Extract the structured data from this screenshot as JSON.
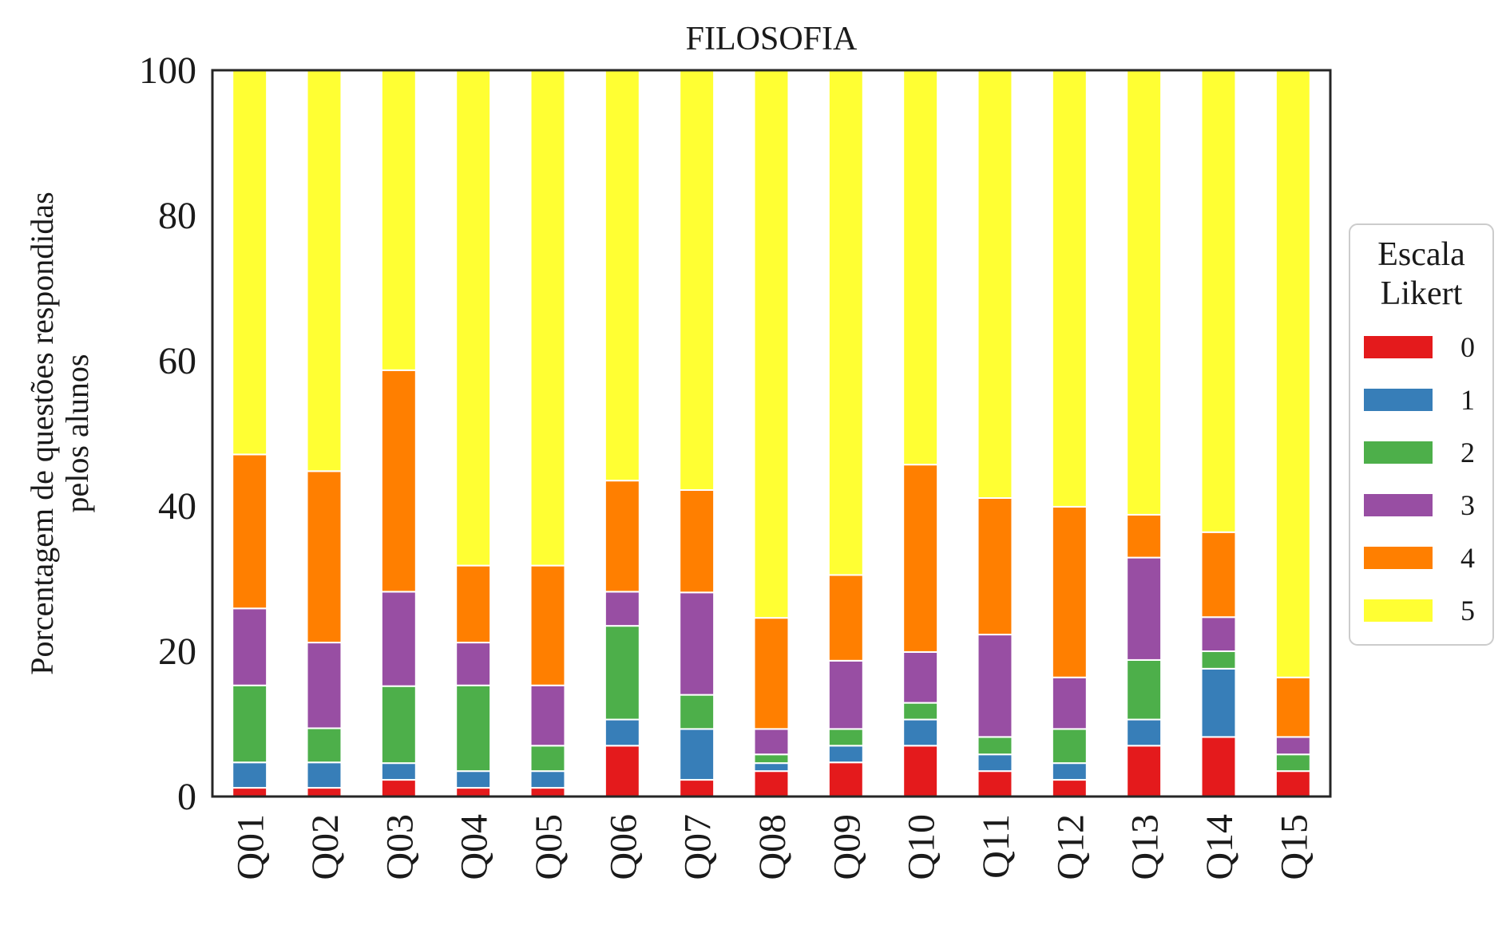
{
  "chart_data": {
    "type": "bar",
    "stacked": true,
    "title": "FILOSOFIA",
    "xlabel": "",
    "ylabel_lines": [
      "Porcentagem de questões respondidas",
      "pelos alunos"
    ],
    "ylim": [
      0,
      100
    ],
    "yticks": [
      "0",
      "20",
      "40",
      "60",
      "80",
      "100"
    ],
    "grid": false,
    "legend_position": "right",
    "legend_title_lines": [
      "Escala",
      "Likert"
    ],
    "categories": [
      "Q01",
      "Q02",
      "Q03",
      "Q04",
      "Q05",
      "Q06",
      "Q07",
      "Q08",
      "Q09",
      "Q10",
      "Q11",
      "Q12",
      "Q13",
      "Q14",
      "Q15"
    ],
    "series": [
      {
        "name": "0",
        "color": "#e41a1c",
        "values": [
          1.2,
          1.2,
          2.3,
          1.2,
          1.2,
          7.0,
          2.3,
          3.5,
          4.7,
          7.0,
          3.5,
          2.3,
          7.0,
          8.2,
          3.5
        ]
      },
      {
        "name": "1",
        "color": "#377eb8",
        "values": [
          3.5,
          3.5,
          2.3,
          2.3,
          2.3,
          3.6,
          7.0,
          1.1,
          2.3,
          3.6,
          2.3,
          2.3,
          3.6,
          9.4,
          0.0
        ]
      },
      {
        "name": "2",
        "color": "#4daf4a",
        "values": [
          10.6,
          4.7,
          10.6,
          11.8,
          3.5,
          12.9,
          4.7,
          1.2,
          2.3,
          2.3,
          2.4,
          4.7,
          8.2,
          2.4,
          2.3
        ]
      },
      {
        "name": "3",
        "color": "#984ea3",
        "values": [
          10.6,
          11.8,
          13.0,
          5.9,
          8.3,
          4.7,
          14.1,
          3.5,
          9.4,
          7.0,
          14.1,
          7.1,
          14.1,
          4.7,
          2.4
        ]
      },
      {
        "name": "4",
        "color": "#ff7f00",
        "values": [
          21.2,
          23.6,
          30.5,
          10.6,
          16.5,
          15.3,
          14.1,
          15.3,
          11.8,
          25.8,
          18.8,
          23.5,
          5.9,
          11.7,
          8.2
        ]
      },
      {
        "name": "5",
        "color": "#ffff33",
        "values": [
          52.9,
          55.2,
          41.3,
          68.2,
          68.2,
          56.5,
          57.8,
          75.4,
          69.5,
          54.3,
          58.9,
          60.1,
          61.2,
          63.6,
          83.6
        ]
      }
    ]
  }
}
